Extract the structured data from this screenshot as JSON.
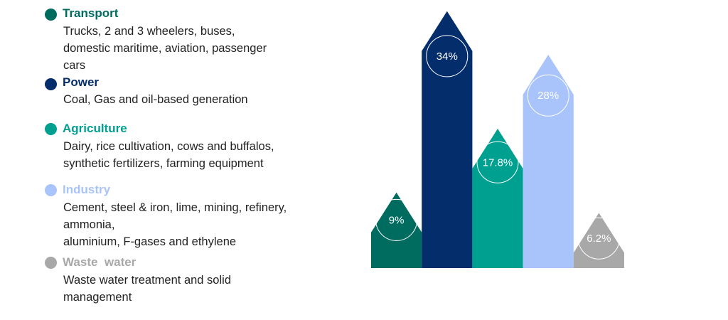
{
  "legend": [
    {
      "title": "Transport",
      "color": "#006b5f",
      "desc": [
        "Trucks, 2 and 3 wheelers, buses,",
        "domestic maritime, aviation, passenger",
        "cars"
      ]
    },
    {
      "title": "Power",
      "color": "#042d6b",
      "desc": [
        "Coal, Gas and oil-based generation"
      ]
    },
    {
      "title": "Agriculture",
      "color": "#00a090",
      "desc": [
        "Dairy, rice cultivation, cows and buffalos,",
        "synthetic fertilizers, farming equipment"
      ]
    },
    {
      "title": "Industry",
      "color": "#a9c4fa",
      "desc": [
        "Cement, steel & iron, lime, mining, refinery,",
        "ammonia,",
        "aluminium, F-gases and ethylene"
      ]
    },
    {
      "title": "Waste  water",
      "color": "#a8a8a8",
      "desc": [
        "Waste water treatment and solid",
        "management"
      ]
    }
  ],
  "chart_data": {
    "type": "bar",
    "categories": [
      "Transport",
      "Power",
      "Agriculture",
      "Industry",
      "Waste  water"
    ],
    "values": [
      9,
      34,
      17.8,
      28,
      6.2
    ],
    "data_labels": [
      "9%",
      "34%",
      "17.8%",
      "28%",
      "6.2%"
    ],
    "colors": [
      "#006b5f",
      "#042d6b",
      "#00a090",
      "#a9c4fa",
      "#a8a8a8"
    ],
    "title": "",
    "xlabel": "",
    "ylabel": ""
  }
}
